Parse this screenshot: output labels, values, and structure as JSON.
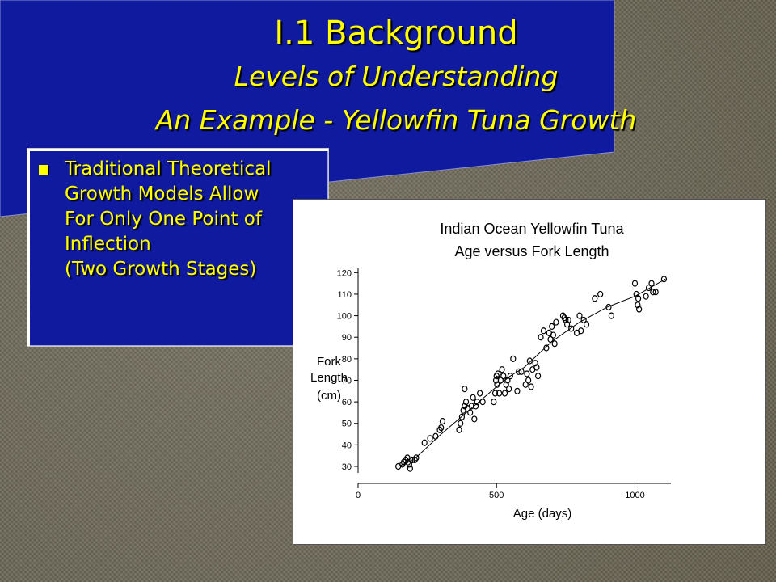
{
  "slide": {
    "title_line1": "I.1 Background",
    "title_line2": "Levels of Understanding",
    "title_line3": "An Example - Yellowfin Tuna Growth",
    "bullet_lines": [
      "Traditional Theoretical",
      "Growth Models Allow",
      "For Only One Point of",
      "Inflection",
      "(Two Growth Stages)"
    ],
    "colors": {
      "title_text": "#ffff00",
      "title_band": "#0f1a9e",
      "background": "#6f6a5c"
    }
  },
  "chart_data": {
    "type": "scatter",
    "title": "Indian Ocean Yellowfin Tuna",
    "subtitle": "Age versus Fork Length",
    "xlabel": "Age (days)",
    "ylabel_lines": [
      "Fork",
      "Length",
      "(cm)"
    ],
    "xlim": [
      0,
      1130
    ],
    "ylim": [
      27,
      122
    ],
    "x_ticks": [
      0,
      500,
      1000
    ],
    "y_ticks": [
      30,
      40,
      50,
      60,
      70,
      80,
      90,
      100,
      110,
      120
    ],
    "marker": "open-circle",
    "series": [
      {
        "points": [
          [
            145,
            30
          ],
          [
            160,
            31
          ],
          [
            165,
            32
          ],
          [
            172,
            33
          ],
          [
            178,
            34
          ],
          [
            180,
            32
          ],
          [
            185,
            31
          ],
          [
            188,
            29
          ],
          [
            195,
            33
          ],
          [
            205,
            33
          ],
          [
            210,
            34
          ],
          [
            240,
            41
          ],
          [
            260,
            43
          ],
          [
            280,
            44
          ],
          [
            295,
            47
          ],
          [
            300,
            48
          ],
          [
            305,
            51
          ],
          [
            365,
            47
          ],
          [
            370,
            50
          ],
          [
            375,
            53
          ],
          [
            380,
            56
          ],
          [
            385,
            58
          ],
          [
            385,
            66
          ],
          [
            390,
            60
          ],
          [
            395,
            57
          ],
          [
            405,
            55
          ],
          [
            410,
            58
          ],
          [
            415,
            62
          ],
          [
            420,
            52
          ],
          [
            425,
            58
          ],
          [
            430,
            60
          ],
          [
            440,
            64
          ],
          [
            450,
            60
          ],
          [
            490,
            60
          ],
          [
            495,
            64
          ],
          [
            498,
            70
          ],
          [
            500,
            72
          ],
          [
            502,
            68
          ],
          [
            505,
            73
          ],
          [
            510,
            64
          ],
          [
            515,
            70
          ],
          [
            520,
            75
          ],
          [
            525,
            72
          ],
          [
            530,
            64
          ],
          [
            535,
            68
          ],
          [
            540,
            70
          ],
          [
            545,
            66
          ],
          [
            550,
            72
          ],
          [
            560,
            80
          ],
          [
            575,
            65
          ],
          [
            580,
            74
          ],
          [
            590,
            74
          ],
          [
            605,
            68
          ],
          [
            610,
            73
          ],
          [
            615,
            70
          ],
          [
            620,
            79
          ],
          [
            625,
            67
          ],
          [
            630,
            75
          ],
          [
            640,
            78
          ],
          [
            645,
            76
          ],
          [
            650,
            72
          ],
          [
            660,
            90
          ],
          [
            670,
            93
          ],
          [
            680,
            85
          ],
          [
            690,
            92
          ],
          [
            695,
            89
          ],
          [
            700,
            95
          ],
          [
            705,
            91
          ],
          [
            710,
            87
          ],
          [
            715,
            97
          ],
          [
            740,
            100
          ],
          [
            745,
            99
          ],
          [
            750,
            98
          ],
          [
            755,
            96
          ],
          [
            760,
            98
          ],
          [
            770,
            94
          ],
          [
            790,
            92
          ],
          [
            800,
            100
          ],
          [
            805,
            93
          ],
          [
            815,
            98
          ],
          [
            825,
            96
          ],
          [
            855,
            108
          ],
          [
            875,
            110
          ],
          [
            905,
            104
          ],
          [
            915,
            100
          ],
          [
            1000,
            115
          ],
          [
            1005,
            110
          ],
          [
            1010,
            105
          ],
          [
            1012,
            108
          ],
          [
            1015,
            103
          ],
          [
            1040,
            109
          ],
          [
            1050,
            113
          ],
          [
            1060,
            115
          ],
          [
            1065,
            111
          ],
          [
            1075,
            111
          ],
          [
            1105,
            117
          ]
        ]
      },
      {
        "name": "",
        "kind": "fitted-line",
        "points": [
          [
            145,
            30
          ],
          [
            200,
            33
          ],
          [
            300,
            45
          ],
          [
            400,
            56
          ],
          [
            500,
            67
          ],
          [
            550,
            72
          ],
          [
            600,
            76
          ],
          [
            700,
            88
          ],
          [
            800,
            97
          ],
          [
            900,
            104
          ],
          [
            1000,
            109
          ],
          [
            1110,
            117
          ]
        ]
      }
    ]
  }
}
